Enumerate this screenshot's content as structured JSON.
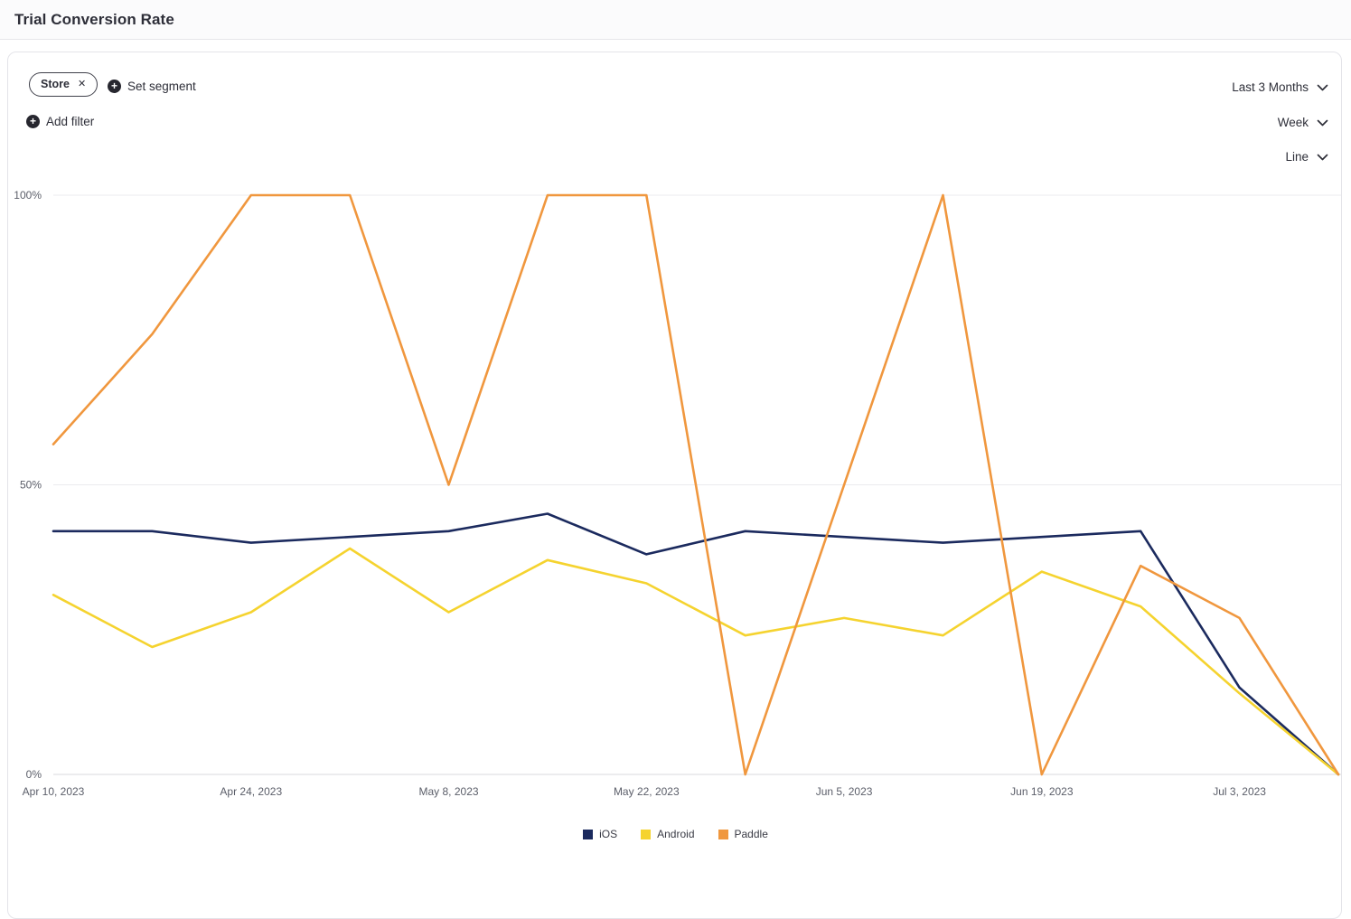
{
  "header": {
    "title": "Trial Conversion Rate"
  },
  "filters": {
    "store_chip_label": "Store",
    "set_segment_label": "Set segment",
    "add_filter_label": "Add filter"
  },
  "controls": {
    "date_range": "Last 3 Months",
    "resolution": "Week",
    "chart_type": "Line"
  },
  "chart_data": {
    "type": "line",
    "title": "Trial Conversion Rate",
    "unit": "%",
    "n_points": 14,
    "ylim": [
      0,
      100
    ],
    "grid": true,
    "legend_position": "bottom",
    "y_ticks": [
      {
        "value": 0,
        "label": "0%"
      },
      {
        "value": 50,
        "label": "50%"
      },
      {
        "value": 100,
        "label": "100%"
      }
    ],
    "x_tick_indices": [
      0,
      2,
      4,
      6,
      8,
      10,
      12
    ],
    "x_tick_labels": [
      "Apr 10, 2023",
      "Apr 24, 2023",
      "May 8, 2023",
      "May 22, 2023",
      "Jun 5, 2023",
      "Jun 19, 2023",
      "Jul 3, 2023"
    ],
    "series": [
      {
        "name": "iOS",
        "color": "#1b2a5e",
        "values": [
          42,
          42,
          40,
          41,
          42,
          45,
          38,
          42,
          41,
          40,
          41,
          42,
          15,
          0
        ]
      },
      {
        "name": "Android",
        "color": "#f5d32f",
        "values": [
          31,
          22,
          28,
          39,
          28,
          37,
          33,
          24,
          27,
          24,
          35,
          29,
          14,
          0
        ]
      },
      {
        "name": "Paddle",
        "color": "#f0973e",
        "values": [
          57,
          76,
          100,
          100,
          50,
          100,
          100,
          0,
          50,
          100,
          0,
          36,
          27,
          0
        ]
      }
    ]
  }
}
